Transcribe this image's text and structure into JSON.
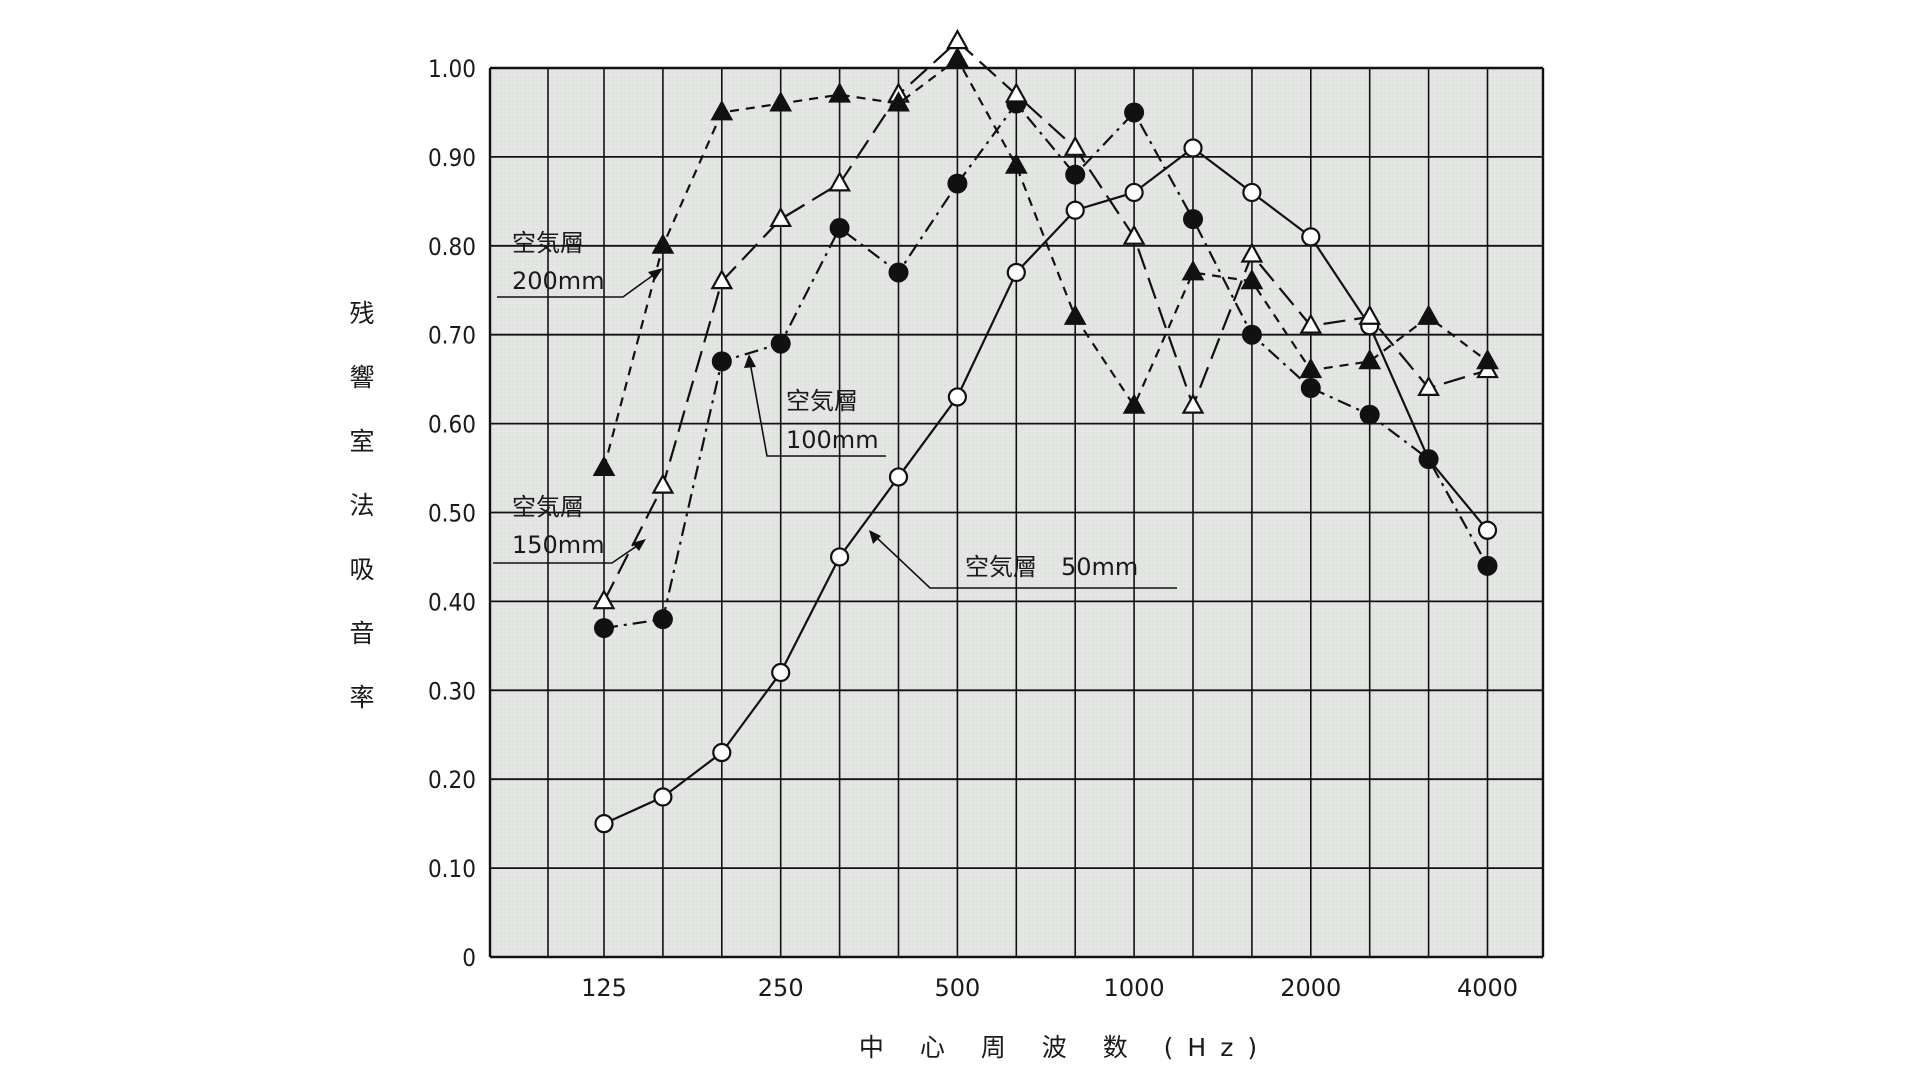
{
  "chart_data": {
    "type": "line",
    "title": "",
    "xlabel": "中 心 周 波 数 (Hz)",
    "ylabel": "残響室法吸音率",
    "ylim": [
      0,
      1.0
    ],
    "grid": true,
    "x_scale": "log (1/3 octave bands)",
    "categories": [
      "125",
      "160",
      "200",
      "250",
      "315",
      "400",
      "500",
      "630",
      "800",
      "1000",
      "1250",
      "1600",
      "2000",
      "2500",
      "3150",
      "4000"
    ],
    "x_tick_labels": [
      "125",
      "250",
      "500",
      "1000",
      "2000",
      "4000"
    ],
    "y_tick_labels": [
      "0",
      "0.10",
      "0.20",
      "0.30",
      "0.40",
      "0.50",
      "0.60",
      "0.70",
      "0.80",
      "0.90",
      "1.00"
    ],
    "series": [
      {
        "name": "空気層 50mm",
        "marker": "open-circle",
        "line": "solid",
        "values": [
          0.15,
          0.18,
          0.23,
          0.32,
          0.45,
          0.54,
          0.63,
          0.77,
          0.84,
          0.86,
          0.91,
          0.86,
          0.81,
          0.71,
          0.56,
          0.48
        ]
      },
      {
        "name": "空気層 100mm",
        "marker": "filled-circle",
        "line": "dash-dot",
        "values": [
          0.37,
          0.38,
          0.67,
          0.69,
          0.82,
          0.77,
          0.87,
          0.96,
          0.88,
          0.95,
          0.83,
          0.7,
          0.64,
          0.61,
          0.56,
          0.44
        ]
      },
      {
        "name": "空気層 150mm",
        "marker": "open-triangle",
        "line": "long-dash",
        "values": [
          0.4,
          0.53,
          0.76,
          0.83,
          0.87,
          0.97,
          1.03,
          0.97,
          0.91,
          0.81,
          0.62,
          0.79,
          0.71,
          0.72,
          0.64,
          0.66
        ]
      },
      {
        "name": "空気層 200mm",
        "marker": "filled-triangle",
        "line": "short-dash",
        "values": [
          0.55,
          0.8,
          0.95,
          0.96,
          0.97,
          0.96,
          1.01,
          0.89,
          0.72,
          0.62,
          0.77,
          0.76,
          0.66,
          0.67,
          0.72,
          0.67
        ]
      }
    ],
    "annotations": [
      {
        "line1": "空気層",
        "line2": "200mm"
      },
      {
        "line1": "空気層",
        "line2": "100mm"
      },
      {
        "line1": "空気層",
        "line2": "150mm"
      },
      {
        "line1": "空気層",
        "line2": "50mm"
      }
    ],
    "colors": {
      "plot_bg": "#e6e8e6",
      "ink": "#111111"
    }
  },
  "labels": {
    "y_axis_chars": [
      "残",
      "響",
      "室",
      "法",
      "吸",
      "音",
      "率"
    ],
    "x_axis_title": "中心周波数(Hz)",
    "anno_200_l1": "空気層",
    "anno_200_l2": "200mm",
    "anno_100_l1": "空気層",
    "anno_100_l2": "100mm",
    "anno_150_l1": "空気層",
    "anno_150_l2": "150mm",
    "anno_50": "空気層　50mm"
  }
}
